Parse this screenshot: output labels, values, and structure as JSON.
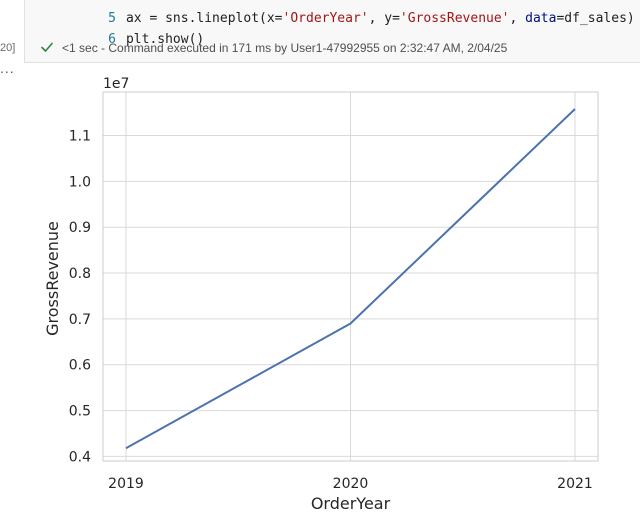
{
  "notebook": {
    "code_lines": [
      {
        "number": "5",
        "tokens": [
          {
            "text": "ax = sns.lineplot(x=",
            "kind": "plain"
          },
          {
            "text": "'OrderYear'",
            "kind": "str"
          },
          {
            "text": ", y=",
            "kind": "plain"
          },
          {
            "text": "'GrossRevenue'",
            "kind": "str"
          },
          {
            "text": ", ",
            "kind": "plain"
          },
          {
            "text": "data",
            "kind": "kw"
          },
          {
            "text": "=df_sales)",
            "kind": "plain"
          }
        ]
      },
      {
        "number": "6",
        "tokens": [
          {
            "text": "plt.show()",
            "kind": "plain"
          }
        ]
      }
    ],
    "execution_count": "20]",
    "status_text": "<1 sec - Command executed in 171 ms by User1-47992955 on 2:32:47 AM, 2/04/25",
    "more_label": "..."
  },
  "colors": {
    "line": "#4c72b0",
    "grid": "#d9d9d9",
    "spine": "#cccccc",
    "check": "#2e8540"
  },
  "chart_data": {
    "type": "line",
    "x": [
      2019,
      2020,
      2021
    ],
    "series": [
      {
        "values": [
          4180000,
          6900000,
          11580000
        ]
      }
    ],
    "xlabel": "OrderYear",
    "ylabel": "GrossRevenue",
    "scale_label": "1e7",
    "xlim": [
      2019,
      2021
    ],
    "ylim": [
      3900000,
      11950000
    ],
    "yticks": [
      4000000,
      5000000,
      6000000,
      7000000,
      8000000,
      9000000,
      10000000,
      11000000
    ],
    "ytick_labels": [
      "0.4",
      "0.5",
      "0.6",
      "0.7",
      "0.8",
      "0.9",
      "1.0",
      "1.1"
    ],
    "xticks": [
      2019,
      2020,
      2021
    ],
    "xtick_labels": [
      "2019",
      "2020",
      "2021"
    ],
    "grid": true,
    "style": "whitegrid"
  }
}
